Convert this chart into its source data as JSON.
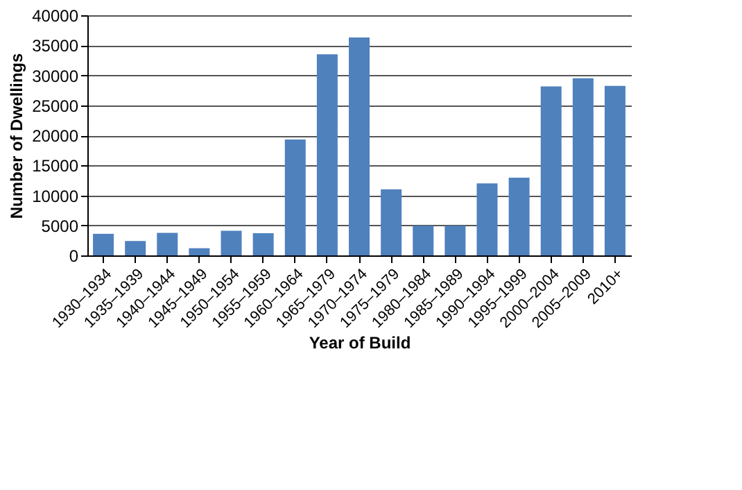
{
  "chart_data": {
    "type": "bar",
    "xlabel": "Year of Build",
    "ylabel": "Number of Dwellings",
    "categories": [
      "1930–1934",
      "1935–1939",
      "1940–1944",
      "1945–1949",
      "1950–1954",
      "1955–1959",
      "1960–1964",
      "1965–1979",
      "1970–1974",
      "1975–1979",
      "1980–1984",
      "1985–1989",
      "1990–1994",
      "1995–1999",
      "2000–2004",
      "2005–2009",
      "2010+"
    ],
    "values": [
      3600,
      2400,
      3750,
      1200,
      4100,
      3700,
      19300,
      33500,
      36300,
      11000,
      4950,
      4950,
      12000,
      12950,
      28150,
      29500,
      28250
    ],
    "color": "#4f81bd",
    "ylim": [
      0,
      40000
    ],
    "yticks": [
      0,
      5000,
      10000,
      15000,
      20000,
      25000,
      30000,
      35000,
      40000
    ],
    "grid": "y"
  }
}
